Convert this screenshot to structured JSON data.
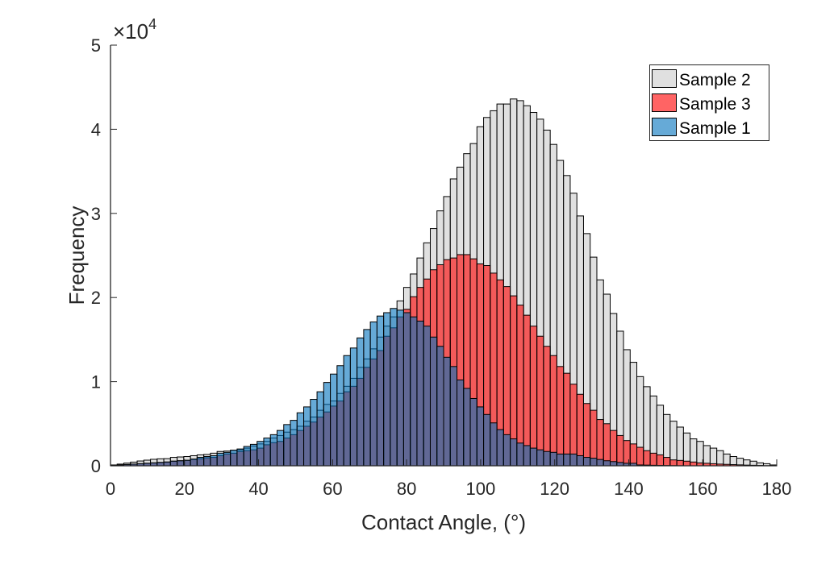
{
  "chart_data": {
    "type": "bar",
    "subtype": "overlaid-histogram",
    "xlabel": "Contact Angle, (°)",
    "ylabel": "Frequency",
    "y_exponent_label": {
      "base": "×10",
      "power": "4"
    },
    "xlim": [
      0,
      180
    ],
    "ylim": [
      0,
      50000
    ],
    "bin_width": 1.8,
    "x_ticks": [
      "0",
      "20",
      "40",
      "60",
      "80",
      "100",
      "120",
      "140",
      "160",
      "180"
    ],
    "x_tick_values": [
      0,
      20,
      40,
      60,
      80,
      100,
      120,
      140,
      160,
      180
    ],
    "y_ticks": [
      "0",
      "1",
      "2",
      "3",
      "4",
      "5"
    ],
    "y_tick_values": [
      0,
      10000,
      20000,
      30000,
      40000,
      50000
    ],
    "grid": false,
    "legend_placement": "top-right",
    "face_alpha": 0.6,
    "series": [
      {
        "name": "Sample 2",
        "color": "#cbcbcb",
        "values": [
          100,
          200,
          320,
          440,
          570,
          670,
          770,
          830,
          850,
          1000,
          1050,
          1100,
          1200,
          1300,
          1350,
          1500,
          1700,
          1750,
          1850,
          1900,
          2100,
          2350,
          2600,
          2900,
          3300,
          3600,
          4000,
          4300,
          4700,
          5300,
          5800,
          6600,
          7300,
          7700,
          8600,
          9450,
          10400,
          11700,
          12700,
          13900,
          15300,
          16600,
          17700,
          19600,
          21200,
          22800,
          24700,
          26500,
          28200,
          30300,
          32000,
          34100,
          35500,
          37100,
          38300,
          40300,
          41400,
          42200,
          43000,
          43000,
          43600,
          43400,
          42800,
          42000,
          41200,
          39900,
          38200,
          36300,
          34500,
          32400,
          29700,
          27600,
          24800,
          22100,
          20400,
          18100,
          16000,
          13800,
          12300,
          10600,
          9400,
          8300,
          7200,
          6100,
          5300,
          4600,
          3900,
          3200,
          2900,
          2400,
          2100,
          1800,
          1400,
          1100,
          900,
          700,
          550,
          350,
          250,
          100
        ]
      },
      {
        "name": "Sample 3",
        "color": "#ff0000",
        "values": [
          50,
          100,
          150,
          200,
          250,
          300,
          350,
          400,
          450,
          550,
          600,
          650,
          750,
          850,
          950,
          1000,
          1200,
          1400,
          1500,
          1700,
          1800,
          1900,
          2100,
          2500,
          2750,
          2900,
          3300,
          3700,
          4200,
          4700,
          5200,
          5800,
          6400,
          7100,
          7700,
          8800,
          9450,
          10400,
          11700,
          12700,
          13700,
          15400,
          16400,
          17700,
          18600,
          20100,
          21200,
          22200,
          23300,
          23900,
          24500,
          24700,
          25100,
          25100,
          24600,
          24000,
          23800,
          22900,
          22100,
          21300,
          20200,
          19100,
          17900,
          16600,
          15400,
          14200,
          13100,
          11800,
          11000,
          9700,
          8500,
          7400,
          6600,
          5500,
          5000,
          4200,
          3600,
          3000,
          2600,
          2200,
          1800,
          1500,
          1300,
          1000,
          700,
          640,
          550,
          450,
          350,
          300,
          250,
          200,
          170,
          140,
          110,
          80,
          60,
          40,
          20,
          10
        ]
      },
      {
        "name": "Sample 1",
        "color": "#0072bd",
        "values": [
          50,
          100,
          150,
          200,
          250,
          300,
          350,
          400,
          450,
          550,
          600,
          650,
          800,
          1000,
          1100,
          1200,
          1500,
          1600,
          1850,
          2000,
          2300,
          2550,
          2900,
          3300,
          3700,
          4200,
          4900,
          5400,
          6300,
          7000,
          7900,
          8800,
          9900,
          10900,
          11900,
          13100,
          14000,
          15200,
          16200,
          17100,
          17800,
          18200,
          18700,
          18500,
          18200,
          17700,
          17200,
          16600,
          15300,
          14200,
          12900,
          11800,
          10200,
          9200,
          8000,
          7000,
          6100,
          5100,
          4300,
          3700,
          3200,
          2700,
          2400,
          2100,
          1900,
          1700,
          1600,
          1400,
          1400,
          1400,
          1200,
          1000,
          900,
          750,
          600,
          500,
          400,
          300,
          300,
          100,
          80,
          60,
          40,
          30,
          20,
          10,
          0,
          0,
          0,
          0,
          0,
          0,
          0,
          0,
          0,
          0,
          0,
          0,
          0,
          0
        ]
      }
    ]
  }
}
